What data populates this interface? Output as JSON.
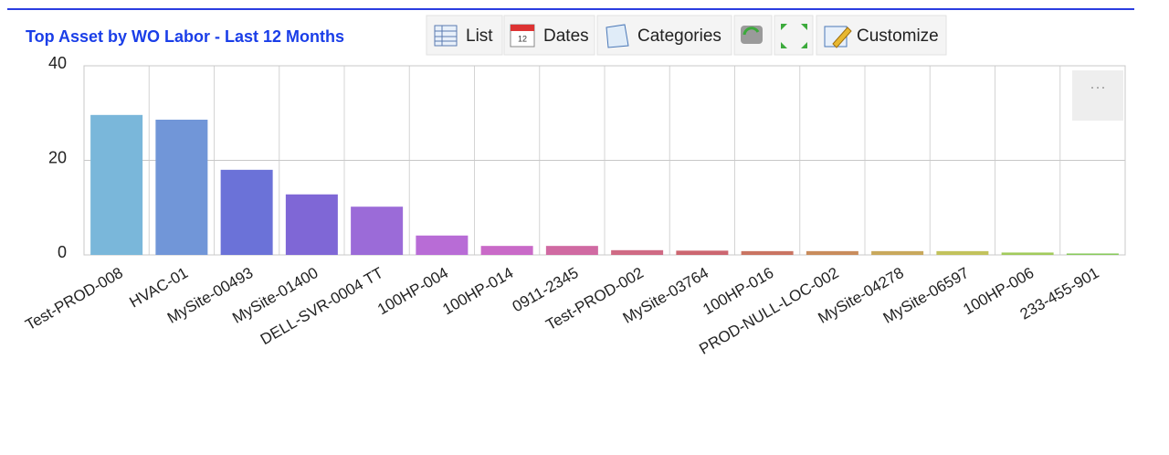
{
  "header": {
    "title": "Top Asset by WO Labor - Last 12 Months",
    "toolbar": [
      "List",
      "Dates",
      "Categories",
      "Customize"
    ]
  },
  "chart_data": {
    "type": "bar",
    "categories": [
      "Test-PROD-008",
      "HVAC-01",
      "MySite-00493",
      "MySite-01400",
      "DELL-SVR-0004 TT",
      "100HP-004",
      "100HP-014",
      "0911-2345",
      "Test-PROD-002",
      "MySite-03764",
      "100HP-016",
      "PROD-NULL-LOC-002",
      "MySite-04278",
      "MySite-06597",
      "100HP-006",
      "233-455-901"
    ],
    "values": [
      29.6,
      28.6,
      18.0,
      12.8,
      10.2,
      4.1,
      1.9,
      1.9,
      1.0,
      0.9,
      0.8,
      0.8,
      0.8,
      0.8,
      0.5,
      0.3
    ],
    "colors": [
      "#7ab7da",
      "#7196d8",
      "#6b72d8",
      "#7f67d6",
      "#9b6bd8",
      "#b86cd6",
      "#c96ac8",
      "#d06aa2",
      "#cf6a84",
      "#cc6670",
      "#c97462",
      "#c88c5c",
      "#c8a85c",
      "#c2c25c",
      "#a2ca5c",
      "#88c95c"
    ],
    "ylim": [
      0,
      40
    ],
    "yticks": [
      0,
      20,
      40
    ],
    "grid": true
  }
}
